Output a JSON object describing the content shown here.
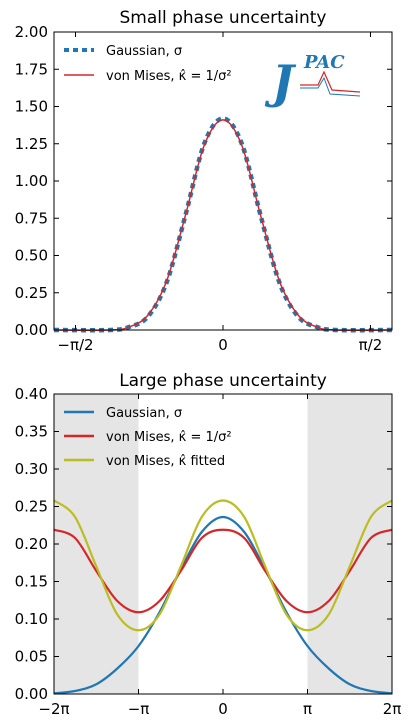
{
  "chart_data": [
    {
      "type": "line",
      "title": "Small phase uncertainty",
      "xlabel": "",
      "ylabel": "",
      "xlim": [
        -1.8,
        1.8
      ],
      "ylim": [
        0,
        2.0
      ],
      "yticks": [
        "0.00",
        "0.25",
        "0.50",
        "0.75",
        "1.00",
        "1.25",
        "1.50",
        "1.75",
        "2.00"
      ],
      "ytick_values": [
        0,
        0.25,
        0.5,
        0.75,
        1.0,
        1.25,
        1.5,
        1.75,
        2.0
      ],
      "xticks": [
        "−π/2",
        "0",
        "π/2"
      ],
      "xtick_values": [
        -1.5708,
        0,
        1.5708
      ],
      "legend_position": "top-left",
      "logo_text": {
        "main": "J",
        "super": "PAC"
      },
      "series": [
        {
          "name": "Gaussian, σ",
          "color": "#1f77b4",
          "style": "dotted",
          "x": [
            -1.8,
            -1.2,
            -1.0,
            -0.8,
            -0.6,
            -0.4,
            -0.2,
            0,
            0.2,
            0.4,
            0.6,
            0.8,
            1.0,
            1.2,
            1.8
          ],
          "y": [
            0.0,
            0.0,
            0.02,
            0.09,
            0.32,
            0.77,
            1.25,
            1.42,
            1.25,
            0.77,
            0.32,
            0.09,
            0.02,
            0.0,
            0.0
          ]
        },
        {
          "name": "von Mises, κ̂ = 1/σ²",
          "color": "#d62728",
          "style": "solid",
          "x": [
            -1.8,
            -1.2,
            -1.0,
            -0.8,
            -0.6,
            -0.4,
            -0.2,
            0,
            0.2,
            0.4,
            0.6,
            0.8,
            1.0,
            1.2,
            1.8
          ],
          "y": [
            0.0,
            0.0,
            0.02,
            0.1,
            0.33,
            0.77,
            1.24,
            1.41,
            1.24,
            0.77,
            0.33,
            0.1,
            0.02,
            0.0,
            0.0
          ]
        }
      ]
    },
    {
      "type": "line",
      "title": "Large phase uncertainty",
      "xlabel": "",
      "ylabel": "",
      "xlim": [
        -6.2832,
        6.2832
      ],
      "ylim": [
        0,
        0.4
      ],
      "yticks": [
        "0.00",
        "0.05",
        "0.10",
        "0.15",
        "0.20",
        "0.25",
        "0.30",
        "0.35",
        "0.40"
      ],
      "ytick_values": [
        0,
        0.05,
        0.1,
        0.15,
        0.2,
        0.25,
        0.3,
        0.35,
        0.4
      ],
      "xticks": [
        "−2π",
        "−π",
        "0",
        "π",
        "2π"
      ],
      "xtick_values": [
        -6.2832,
        -3.1416,
        0,
        3.1416,
        6.2832
      ],
      "shaded_regions": [
        [
          -6.2832,
          -3.1416
        ],
        [
          3.1416,
          6.2832
        ]
      ],
      "legend_position": "top-left",
      "series": [
        {
          "name": "Gaussian, σ",
          "color": "#1f77b4",
          "style": "solid",
          "x": [
            -6.28,
            -5.5,
            -4.71,
            -3.93,
            -3.14,
            -2.36,
            -1.57,
            -0.79,
            0,
            0.79,
            1.57,
            2.36,
            3.14,
            3.93,
            4.71,
            5.5,
            6.28
          ],
          "y": [
            0.001,
            0.004,
            0.013,
            0.034,
            0.064,
            0.109,
            0.166,
            0.216,
            0.236,
            0.216,
            0.166,
            0.109,
            0.064,
            0.034,
            0.013,
            0.004,
            0.001
          ]
        },
        {
          "name": "von Mises, κ̂ = 1/σ²",
          "color": "#d62728",
          "style": "solid",
          "x": [
            -6.28,
            -5.5,
            -4.71,
            -3.93,
            -3.14,
            -2.36,
            -1.57,
            -0.79,
            0,
            0.79,
            1.57,
            2.36,
            3.14,
            3.93,
            4.71,
            5.5,
            6.28
          ],
          "y": [
            0.219,
            0.208,
            0.164,
            0.124,
            0.109,
            0.124,
            0.164,
            0.208,
            0.219,
            0.208,
            0.164,
            0.124,
            0.109,
            0.124,
            0.164,
            0.208,
            0.219
          ]
        },
        {
          "name": "von Mises, κ̂ fitted",
          "color": "#bcbd22",
          "style": "solid",
          "x": [
            -6.28,
            -5.5,
            -4.71,
            -3.93,
            -3.14,
            -2.36,
            -1.57,
            -0.79,
            0,
            0.79,
            1.57,
            2.36,
            3.14,
            3.93,
            4.71,
            5.5,
            6.28
          ],
          "y": [
            0.258,
            0.236,
            0.17,
            0.106,
            0.085,
            0.106,
            0.17,
            0.236,
            0.258,
            0.236,
            0.17,
            0.106,
            0.085,
            0.106,
            0.17,
            0.236,
            0.258
          ]
        }
      ]
    }
  ]
}
